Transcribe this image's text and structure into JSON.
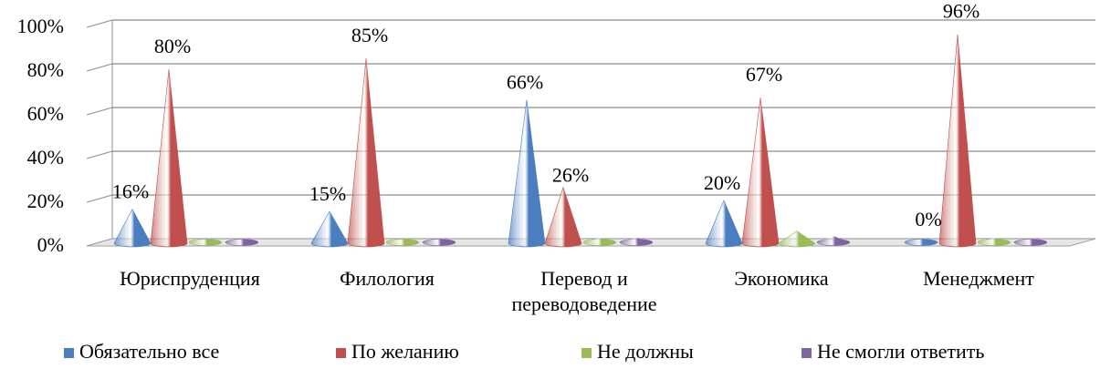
{
  "chart_data": {
    "type": "bar",
    "style": "3d-cone",
    "categories": [
      [
        "Юриспруденция"
      ],
      [
        "Филология"
      ],
      [
        "Перевод и",
        "переводоведение"
      ],
      [
        "Экономика"
      ],
      [
        "Менеджмент"
      ]
    ],
    "series": [
      {
        "name": "Обязательно все",
        "color": "#4a7ebf",
        "values": [
          16,
          15,
          66,
          20,
          0
        ]
      },
      {
        "name": "По желанию",
        "color": "#c0504d",
        "values": [
          80,
          85,
          26,
          67,
          96
        ]
      },
      {
        "name": "Не должны",
        "color": "#9bbb59",
        "values": [
          1,
          1,
          2,
          6,
          2
        ]
      },
      {
        "name": "Не смогли ответить",
        "color": "#8064a2",
        "values": [
          1,
          1,
          2,
          3,
          1
        ]
      }
    ],
    "data_labels": [
      {
        "series": 0,
        "category": 0,
        "text": "16%"
      },
      {
        "series": 1,
        "category": 0,
        "text": "80%"
      },
      {
        "series": 0,
        "category": 1,
        "text": "15%"
      },
      {
        "series": 1,
        "category": 1,
        "text": "85%"
      },
      {
        "series": 0,
        "category": 2,
        "text": "66%"
      },
      {
        "series": 1,
        "category": 2,
        "text": "26%"
      },
      {
        "series": 0,
        "category": 3,
        "text": "20%"
      },
      {
        "series": 1,
        "category": 3,
        "text": "67%"
      },
      {
        "series": 0,
        "category": 4,
        "text": "0%"
      },
      {
        "series": 1,
        "category": 4,
        "text": "96%"
      }
    ],
    "y_ticks": [
      "0%",
      "20%",
      "40%",
      "60%",
      "80%",
      "100%"
    ],
    "ylim": [
      0,
      100
    ],
    "grid": true,
    "legend_position": "bottom",
    "title": "",
    "xlabel": "",
    "ylabel": ""
  }
}
